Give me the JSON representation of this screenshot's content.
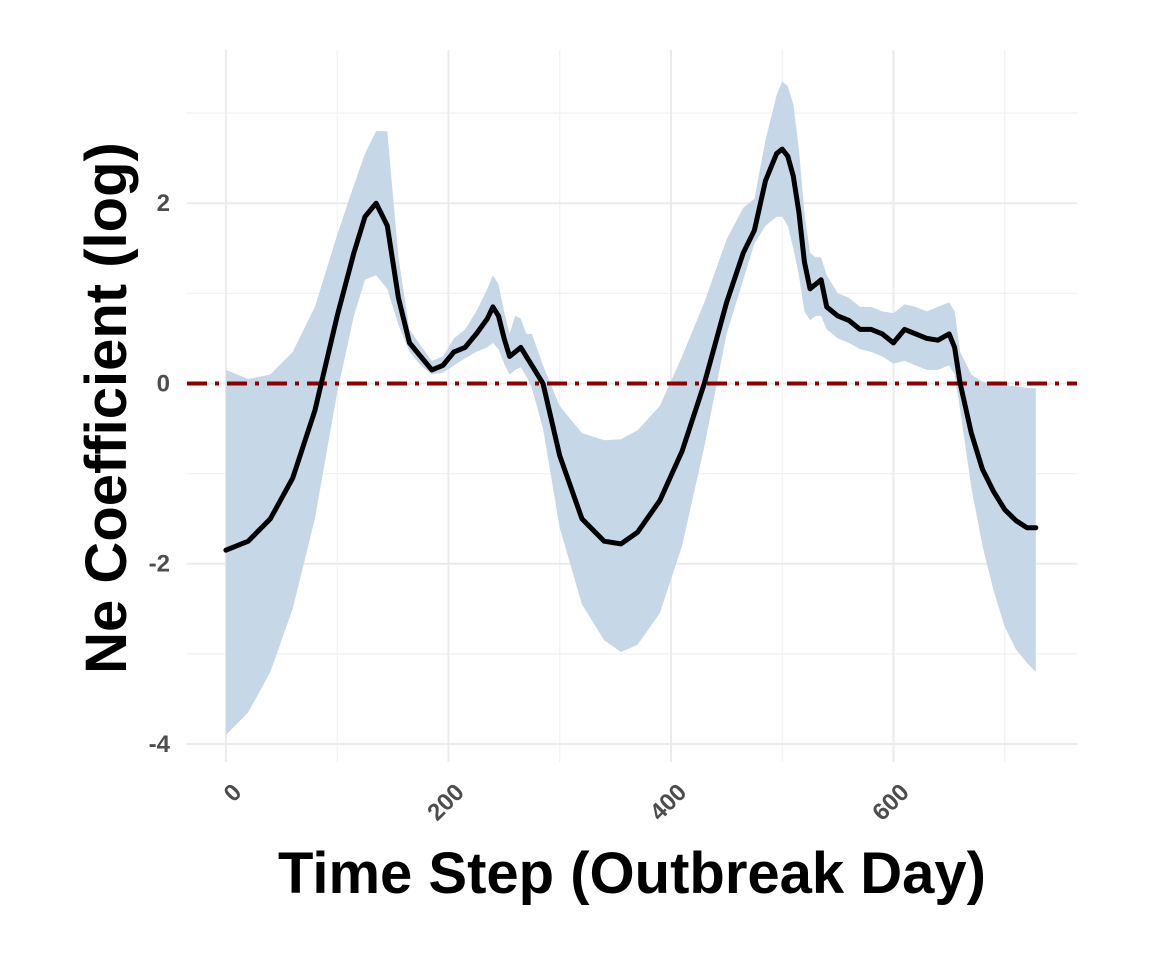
{
  "chart_data": {
    "type": "line",
    "title": "",
    "xlabel": "Time Step (Outbreak Day)",
    "ylabel": "Ne Coefficient (log)",
    "xlim": [
      -35,
      765
    ],
    "ylim": [
      -4.2,
      3.7
    ],
    "x_ticks": [
      0,
      200,
      400,
      600
    ],
    "x_tick_labels": [
      "0",
      "200",
      "400",
      "600"
    ],
    "y_ticks": [
      -4,
      -2,
      0,
      2
    ],
    "y_tick_labels": [
      "-4",
      "-2",
      "0",
      "2"
    ],
    "x_minor_gridlines": [
      100,
      300,
      500,
      700
    ],
    "y_minor_gridlines": [
      -3,
      -1,
      1,
      3
    ],
    "grid": true,
    "legend": "none",
    "reference_line": {
      "y": 0,
      "style": "dash-dot",
      "color": "#8B0000"
    },
    "colors": {
      "line": "#000000",
      "band": "#c6d7e8",
      "grid": "#ebebeb"
    },
    "series": [
      {
        "x": [
          0,
          20,
          40,
          60,
          80,
          100,
          115,
          125,
          135,
          145,
          155,
          165,
          175,
          185,
          195,
          205,
          215,
          225,
          235,
          240,
          245,
          250,
          255,
          260,
          265,
          270,
          275,
          285,
          300,
          320,
          340,
          355,
          370,
          390,
          410,
          430,
          450,
          465,
          475,
          485,
          495,
          500,
          505,
          510,
          515,
          520,
          525,
          530,
          535,
          540,
          550,
          560,
          570,
          580,
          590,
          600,
          610,
          620,
          630,
          640,
          650,
          655,
          660,
          670,
          680,
          690,
          700,
          710,
          720,
          728
        ],
        "values": [
          -1.85,
          -1.75,
          -1.5,
          -1.05,
          -0.3,
          0.75,
          1.45,
          1.85,
          2.0,
          1.75,
          0.95,
          0.45,
          0.3,
          0.15,
          0.2,
          0.35,
          0.4,
          0.55,
          0.72,
          0.85,
          0.75,
          0.5,
          0.3,
          0.35,
          0.4,
          0.3,
          0.2,
          0.0,
          -0.8,
          -1.5,
          -1.75,
          -1.78,
          -1.65,
          -1.3,
          -0.75,
          0.0,
          0.9,
          1.45,
          1.7,
          2.25,
          2.55,
          2.6,
          2.52,
          2.3,
          1.9,
          1.35,
          1.05,
          1.1,
          1.15,
          0.85,
          0.75,
          0.7,
          0.6,
          0.6,
          0.55,
          0.45,
          0.6,
          0.55,
          0.5,
          0.48,
          0.55,
          0.4,
          0.0,
          -0.55,
          -0.95,
          -1.2,
          -1.4,
          -1.52,
          -1.6,
          -1.6
        ]
      }
    ],
    "band": {
      "x": [
        0,
        20,
        40,
        60,
        80,
        100,
        115,
        125,
        135,
        145,
        155,
        165,
        175,
        185,
        195,
        205,
        215,
        225,
        235,
        240,
        245,
        250,
        255,
        260,
        265,
        270,
        275,
        285,
        300,
        320,
        340,
        355,
        370,
        390,
        410,
        430,
        450,
        465,
        475,
        485,
        495,
        500,
        505,
        510,
        515,
        520,
        525,
        530,
        535,
        540,
        550,
        560,
        570,
        580,
        590,
        600,
        610,
        620,
        630,
        640,
        650,
        655,
        660,
        670,
        680,
        690,
        700,
        710,
        720,
        728
      ],
      "lower": [
        -3.9,
        -3.65,
        -3.2,
        -2.5,
        -1.5,
        -0.1,
        0.75,
        1.15,
        1.2,
        1.05,
        0.65,
        0.35,
        0.2,
        0.1,
        0.12,
        0.2,
        0.28,
        0.35,
        0.4,
        0.45,
        0.38,
        0.22,
        0.1,
        0.15,
        0.18,
        0.08,
        -0.05,
        -0.5,
        -1.6,
        -2.45,
        -2.85,
        -2.98,
        -2.9,
        -2.55,
        -1.8,
        -0.7,
        0.55,
        1.15,
        1.55,
        1.75,
        1.85,
        1.85,
        1.75,
        1.5,
        1.2,
        0.8,
        0.7,
        0.75,
        0.75,
        0.6,
        0.5,
        0.45,
        0.38,
        0.35,
        0.3,
        0.22,
        0.25,
        0.2,
        0.15,
        0.15,
        0.2,
        0.1,
        -0.3,
        -1.15,
        -1.8,
        -2.3,
        -2.7,
        -2.95,
        -3.1,
        -3.2
      ],
      "upper": [
        0.15,
        0.05,
        0.1,
        0.35,
        0.85,
        1.65,
        2.2,
        2.55,
        2.8,
        2.8,
        1.4,
        0.6,
        0.42,
        0.25,
        0.3,
        0.5,
        0.6,
        0.8,
        1.05,
        1.2,
        1.1,
        0.8,
        0.55,
        0.75,
        0.72,
        0.55,
        0.55,
        0.2,
        -0.25,
        -0.55,
        -0.63,
        -0.62,
        -0.52,
        -0.25,
        0.3,
        0.9,
        1.6,
        1.95,
        2.05,
        2.7,
        3.2,
        3.35,
        3.3,
        3.1,
        2.6,
        1.9,
        1.45,
        1.4,
        1.4,
        1.2,
        1.0,
        0.95,
        0.85,
        0.85,
        0.8,
        0.78,
        0.88,
        0.85,
        0.8,
        0.85,
        0.9,
        0.8,
        0.35,
        0.1,
        0.02,
        0.0,
        -0.02,
        -0.03,
        -0.05,
        -0.05
      ]
    }
  }
}
